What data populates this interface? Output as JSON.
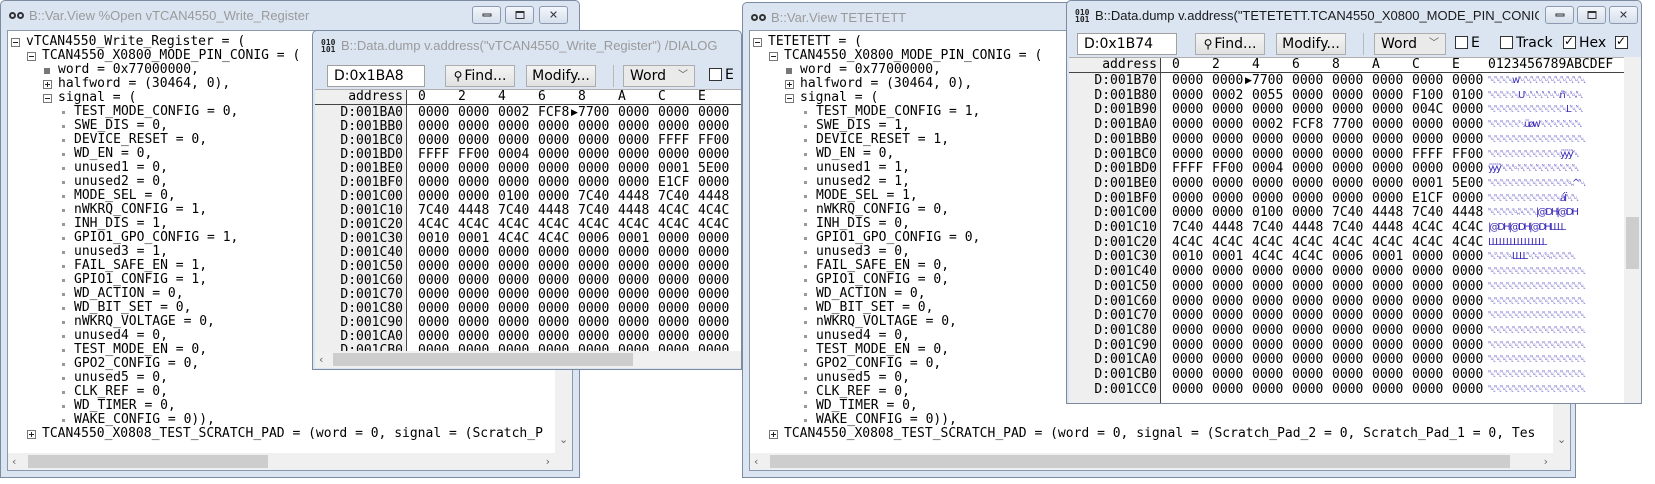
{
  "window_buttons": {
    "minimize_icon": "minimize-icon",
    "maximize_icon": "maximize-icon",
    "close_icon": "close-icon",
    "close_glyph": "✕"
  },
  "var_view_1": {
    "title": "B::Var.View %Open vTCAN4550_Write_Register",
    "lines": [
      {
        "level": 0,
        "marker": "minus",
        "text": "vTCAN4550_Write_Register = ("
      },
      {
        "level": 1,
        "marker": "minus",
        "text": "TCAN4550_X0800_MODE_PIN_CONIG = ("
      },
      {
        "level": 2,
        "marker": "square",
        "text": "word = 0x77000000,"
      },
      {
        "level": 2,
        "marker": "plus",
        "text": "halfword = (30464, 0),"
      },
      {
        "level": 2,
        "marker": "minus",
        "text": "signal = ("
      },
      {
        "level": 3,
        "marker": "dot",
        "text": "TEST_MODE_CONFIG = 0,"
      },
      {
        "level": 3,
        "marker": "dot",
        "text": "SWE_DIS = 0,"
      },
      {
        "level": 3,
        "marker": "dot",
        "text": "DEVICE_RESET = 0,"
      },
      {
        "level": 3,
        "marker": "dot",
        "text": "WD_EN = 0,"
      },
      {
        "level": 3,
        "marker": "dot",
        "text": "unused1 = 0,"
      },
      {
        "level": 3,
        "marker": "dot",
        "text": "unused2 = 0,"
      },
      {
        "level": 3,
        "marker": "dot",
        "text": "MODE_SEL = 0,"
      },
      {
        "level": 3,
        "marker": "dot",
        "text": "nWKRQ_CONFIG = 1,"
      },
      {
        "level": 3,
        "marker": "dot",
        "text": "INH_DIS = 1,"
      },
      {
        "level": 3,
        "marker": "dot",
        "text": "GPIO1_GPO_CONFIG = 1,"
      },
      {
        "level": 3,
        "marker": "dot",
        "text": "unused3 = 1,"
      },
      {
        "level": 3,
        "marker": "dot",
        "text": "FAIL_SAFE_EN = 1,"
      },
      {
        "level": 3,
        "marker": "dot",
        "text": "GPIO1_CONFIG = 1,"
      },
      {
        "level": 3,
        "marker": "dot",
        "text": "WD_ACTION = 0,"
      },
      {
        "level": 3,
        "marker": "dot",
        "text": "WD_BIT_SET = 0,"
      },
      {
        "level": 3,
        "marker": "dot",
        "text": "nWKRQ_VOLTAGE = 0,"
      },
      {
        "level": 3,
        "marker": "dot",
        "text": "unused4 = 0,"
      },
      {
        "level": 3,
        "marker": "dot",
        "text": "TEST_MODE_EN = 0,"
      },
      {
        "level": 3,
        "marker": "dot",
        "text": "GPO2_CONFIG = 0,"
      },
      {
        "level": 3,
        "marker": "dot",
        "text": "unused5 = 0,"
      },
      {
        "level": 3,
        "marker": "dot",
        "text": "CLK_REF = 0,"
      },
      {
        "level": 3,
        "marker": "dot",
        "text": "WD_TIMER = 0,"
      },
      {
        "level": 3,
        "marker": "dot",
        "text": "WAKE_CONFIG = 0)),"
      },
      {
        "level": 1,
        "marker": "plus",
        "text": "TCAN4550_X0808_TEST_SCRATCH_PAD = (word = 0, signal = (Scratch_P"
      }
    ]
  },
  "var_view_2": {
    "title": "B::Var.View TETETETT",
    "lines": [
      {
        "level": 0,
        "marker": "minus",
        "text": "TETETETT = ("
      },
      {
        "level": 1,
        "marker": "minus",
        "text": "TCAN4550_X0800_MODE_PIN_CONIG = ("
      },
      {
        "level": 2,
        "marker": "square",
        "text": "word = 0x77000000,"
      },
      {
        "level": 2,
        "marker": "plus",
        "text": "halfword = (30464, 0),"
      },
      {
        "level": 2,
        "marker": "minus",
        "text": "signal = ("
      },
      {
        "level": 3,
        "marker": "dot",
        "text": "TEST_MODE_CONFIG = 1,"
      },
      {
        "level": 3,
        "marker": "dot",
        "text": "SWE_DIS = 1,"
      },
      {
        "level": 3,
        "marker": "dot",
        "text": "DEVICE_RESET = 1,"
      },
      {
        "level": 3,
        "marker": "dot",
        "text": "WD_EN = 0,"
      },
      {
        "level": 3,
        "marker": "dot",
        "text": "unused1 = 1,"
      },
      {
        "level": 3,
        "marker": "dot",
        "text": "unused2 = 1,"
      },
      {
        "level": 3,
        "marker": "dot",
        "text": "MODE_SEL = 1,"
      },
      {
        "level": 3,
        "marker": "dot",
        "text": "nWKRQ_CONFIG = 0,"
      },
      {
        "level": 3,
        "marker": "dot",
        "text": "INH_DIS = 0,"
      },
      {
        "level": 3,
        "marker": "dot",
        "text": "GPIO1_GPO_CONFIG = 0,"
      },
      {
        "level": 3,
        "marker": "dot",
        "text": "unused3 = 0,"
      },
      {
        "level": 3,
        "marker": "dot",
        "text": "FAIL_SAFE_EN = 0,"
      },
      {
        "level": 3,
        "marker": "dot",
        "text": "GPIO1_CONFIG = 0,"
      },
      {
        "level": 3,
        "marker": "dot",
        "text": "WD_ACTION = 0,"
      },
      {
        "level": 3,
        "marker": "dot",
        "text": "WD_BIT_SET = 0,"
      },
      {
        "level": 3,
        "marker": "dot",
        "text": "nWKRQ_VOLTAGE = 0,"
      },
      {
        "level": 3,
        "marker": "dot",
        "text": "unused4 = 0,"
      },
      {
        "level": 3,
        "marker": "dot",
        "text": "TEST_MODE_EN = 0,"
      },
      {
        "level": 3,
        "marker": "dot",
        "text": "GPO2_CONFIG = 0,"
      },
      {
        "level": 3,
        "marker": "dot",
        "text": "unused5 = 0,"
      },
      {
        "level": 3,
        "marker": "dot",
        "text": "CLK_REF = 0,"
      },
      {
        "level": 3,
        "marker": "dot",
        "text": "WD_TIMER = 0,"
      },
      {
        "level": 3,
        "marker": "dot",
        "text": "WAKE_CONFIG = 0)),"
      },
      {
        "level": 1,
        "marker": "plus",
        "text": "TCAN4550_X0808_TEST_SCRATCH_PAD = (word = 0, signal = (Scratch_Pad_2 = 0, Scratch_Pad_1 = 0, Tes"
      }
    ]
  },
  "dump_1": {
    "title": "B::Data.dump v.address(\"vTCAN4550_Write_Register\") /DIALOG",
    "icon": "binary-010-101-icon",
    "icon_text": [
      "010",
      "101"
    ],
    "address_input": "D:0x1BA8",
    "find_label": "Find...",
    "modify_label": "Modify...",
    "access_width": "Word",
    "checkboxes": [
      {
        "label": "E",
        "checked": false
      }
    ],
    "columns": [
      "address",
      "0",
      "2",
      "4",
      "6",
      "8",
      "A",
      "C",
      "E"
    ],
    "pointer": {
      "row": 0,
      "word": 4
    },
    "rows": [
      {
        "address": "D:001BA0",
        "words": [
          "0000",
          "0000",
          "0002",
          "FCF8",
          "7700",
          "0000",
          "0000",
          "0000"
        ]
      },
      {
        "address": "D:001BB0",
        "words": [
          "0000",
          "0000",
          "0000",
          "0000",
          "0000",
          "0000",
          "0000",
          "0000"
        ]
      },
      {
        "address": "D:001BC0",
        "words": [
          "0000",
          "0000",
          "0000",
          "0000",
          "0000",
          "0000",
          "FFFF",
          "FF00"
        ]
      },
      {
        "address": "D:001BD0",
        "words": [
          "FFFF",
          "FF00",
          "0004",
          "0000",
          "0000",
          "0000",
          "0000",
          "0000"
        ]
      },
      {
        "address": "D:001BE0",
        "words": [
          "0000",
          "0000",
          "0000",
          "0000",
          "0000",
          "0000",
          "0001",
          "5E00"
        ]
      },
      {
        "address": "D:001BF0",
        "words": [
          "0000",
          "0000",
          "0000",
          "0000",
          "0000",
          "0000",
          "E1CF",
          "0000"
        ]
      },
      {
        "address": "D:001C00",
        "words": [
          "0000",
          "0000",
          "0100",
          "0000",
          "7C40",
          "4448",
          "7C40",
          "4448"
        ]
      },
      {
        "address": "D:001C10",
        "words": [
          "7C40",
          "4448",
          "7C40",
          "4448",
          "7C40",
          "4448",
          "4C4C",
          "4C4C"
        ]
      },
      {
        "address": "D:001C20",
        "words": [
          "4C4C",
          "4C4C",
          "4C4C",
          "4C4C",
          "4C4C",
          "4C4C",
          "4C4C",
          "4C4C"
        ]
      },
      {
        "address": "D:001C30",
        "words": [
          "0010",
          "0001",
          "4C4C",
          "4C4C",
          "0006",
          "0001",
          "0000",
          "0000"
        ]
      },
      {
        "address": "D:001C40",
        "words": [
          "0000",
          "0000",
          "0000",
          "0000",
          "0000",
          "0000",
          "0000",
          "0000"
        ]
      },
      {
        "address": "D:001C50",
        "words": [
          "0000",
          "0000",
          "0000",
          "0000",
          "0000",
          "0000",
          "0000",
          "0000"
        ]
      },
      {
        "address": "D:001C60",
        "words": [
          "0000",
          "0000",
          "0000",
          "0000",
          "0000",
          "0000",
          "0000",
          "0000"
        ]
      },
      {
        "address": "D:001C70",
        "words": [
          "0000",
          "0000",
          "0000",
          "0000",
          "0000",
          "0000",
          "0000",
          "0000"
        ]
      },
      {
        "address": "D:001C80",
        "words": [
          "0000",
          "0000",
          "0000",
          "0000",
          "0000",
          "0000",
          "0000",
          "0000"
        ]
      },
      {
        "address": "D:001C90",
        "words": [
          "0000",
          "0000",
          "0000",
          "0000",
          "0000",
          "0000",
          "0000",
          "0000"
        ]
      },
      {
        "address": "D:001CA0",
        "words": [
          "0000",
          "0000",
          "0000",
          "0000",
          "0000",
          "0000",
          "0000",
          "0000"
        ]
      },
      {
        "address": "D:001CB0",
        "words": [
          "0000",
          "0000",
          "0000",
          "0000",
          "0000",
          "0000",
          "0000",
          "0000"
        ]
      }
    ]
  },
  "dump_2": {
    "title": "B::Data.dump v.address(\"TETETETT.TCAN4550_X0800_MODE_PIN_CONIG\") /DIAL...",
    "icon": "binary-010-101-icon",
    "icon_text": [
      "010",
      "101"
    ],
    "address_input": "D:0x1B74",
    "find_label": "Find...",
    "modify_label": "Modify...",
    "access_width": "Word",
    "checkboxes": [
      {
        "label": "E",
        "checked": false
      },
      {
        "label": "Track",
        "checked": false
      },
      {
        "label": "Hex",
        "checked": true
      },
      {
        "label": "",
        "checked": true
      }
    ],
    "columns": [
      "address",
      "0",
      "2",
      "4",
      "6",
      "8",
      "A",
      "C",
      "E"
    ],
    "ascii_header": "0123456789ABCDEF",
    "pointer": {
      "row": 0,
      "word": 2
    },
    "rows": [
      {
        "address": "D:001B70",
        "words": [
          "0000",
          "0000",
          "7700",
          "0000",
          "0000",
          "0000",
          "0000",
          "0000"
        ],
        "ascii": "␀␀␀␀w␀␀␀␀␀␀␀␀␀␀␀"
      },
      {
        "address": "D:001B80",
        "words": [
          "0000",
          "0002",
          "0055",
          "0000",
          "0000",
          "0000",
          "F100",
          "0100"
        ],
        "ascii": "␀␀␀␂␀U␀␀␀␀␀␀ñ␀␁␀"
      },
      {
        "address": "D:001B90",
        "words": [
          "0000",
          "0000",
          "0000",
          "0000",
          "0000",
          "0000",
          "004C",
          "0000"
        ],
        "ascii": "␀␀␀␀␀␀␀␀␀␀␀␀␀L␀␀"
      },
      {
        "address": "D:001BA0",
        "words": [
          "0000",
          "0000",
          "0002",
          "FCF8",
          "7700",
          "0000",
          "0000",
          "0000"
        ],
        "ascii": "␀␀␀␀␀␂üøw␀␀␀␀␀␀␀"
      },
      {
        "address": "D:001BB0",
        "words": [
          "0000",
          "0000",
          "0000",
          "0000",
          "0000",
          "0000",
          "0000",
          "0000"
        ],
        "ascii": "␀␀␀␀␀␀␀␀␀␀␀␀␀␀␀␀"
      },
      {
        "address": "D:001BC0",
        "words": [
          "0000",
          "0000",
          "0000",
          "0000",
          "0000",
          "0000",
          "FFFF",
          "FF00"
        ],
        "ascii": "␀␀␀␀␀␀␀␀␀␀␀␀ÿÿÿ␀"
      },
      {
        "address": "D:001BD0",
        "words": [
          "FFFF",
          "FF00",
          "0004",
          "0000",
          "0000",
          "0000",
          "0000",
          "0000"
        ],
        "ascii": "ÿÿÿ␀␀␄␀␀␀␀␀␀␀␀␀␀"
      },
      {
        "address": "D:001BE0",
        "words": [
          "0000",
          "0000",
          "0000",
          "0000",
          "0000",
          "0000",
          "0001",
          "5E00"
        ],
        "ascii": "␀␀␀␀␀␀␀␀␀␀␀␀␀␁^␀"
      },
      {
        "address": "D:001BF0",
        "words": [
          "0000",
          "0000",
          "0000",
          "0000",
          "0000",
          "0000",
          "E1CF",
          "0000"
        ],
        "ascii": "␀␀␀␀␀␀␀␀␀␀␀␀áÏ␀␀"
      },
      {
        "address": "D:001C00",
        "words": [
          "0000",
          "0000",
          "0100",
          "0000",
          "7C40",
          "4448",
          "7C40",
          "4448"
        ],
        "ascii": "␀␀␀␀␁␀␀␀|@DH|@DH"
      },
      {
        "address": "D:001C10",
        "words": [
          "7C40",
          "4448",
          "7C40",
          "4448",
          "7C40",
          "4448",
          "4C4C",
          "4C4C"
        ],
        "ascii": "|@DH|@DH|@DHLLLL"
      },
      {
        "address": "D:001C20",
        "words": [
          "4C4C",
          "4C4C",
          "4C4C",
          "4C4C",
          "4C4C",
          "4C4C",
          "4C4C",
          "4C4C"
        ],
        "ascii": "LLLLLLLLLLLLLLLL"
      },
      {
        "address": "D:001C30",
        "words": [
          "0010",
          "0001",
          "4C4C",
          "4C4C",
          "0006",
          "0001",
          "0000",
          "0000"
        ],
        "ascii": "␀␐␀␁LLLL␀␆␀␁␀␀␀␀"
      },
      {
        "address": "D:001C40",
        "words": [
          "0000",
          "0000",
          "0000",
          "0000",
          "0000",
          "0000",
          "0000",
          "0000"
        ],
        "ascii": "␀␀␀␀␀␀␀␀␀␀␀␀␀␀␀␀"
      },
      {
        "address": "D:001C50",
        "words": [
          "0000",
          "0000",
          "0000",
          "0000",
          "0000",
          "0000",
          "0000",
          "0000"
        ],
        "ascii": "␀␀␀␀␀␀␀␀␀␀␀␀␀␀␀␀"
      },
      {
        "address": "D:001C60",
        "words": [
          "0000",
          "0000",
          "0000",
          "0000",
          "0000",
          "0000",
          "0000",
          "0000"
        ],
        "ascii": "␀␀␀␀␀␀␀␀␀␀␀␀␀␀␀␀"
      },
      {
        "address": "D:001C70",
        "words": [
          "0000",
          "0000",
          "0000",
          "0000",
          "0000",
          "0000",
          "0000",
          "0000"
        ],
        "ascii": "␀␀␀␀␀␀␀␀␀␀␀␀␀␀␀␀"
      },
      {
        "address": "D:001C80",
        "words": [
          "0000",
          "0000",
          "0000",
          "0000",
          "0000",
          "0000",
          "0000",
          "0000"
        ],
        "ascii": "␀␀␀␀␀␀␀␀␀␀␀␀␀␀␀␀"
      },
      {
        "address": "D:001C90",
        "words": [
          "0000",
          "0000",
          "0000",
          "0000",
          "0000",
          "0000",
          "0000",
          "0000"
        ],
        "ascii": "␀␀␀␀␀␀␀␀␀␀␀␀␀␀␀␀"
      },
      {
        "address": "D:001CA0",
        "words": [
          "0000",
          "0000",
          "0000",
          "0000",
          "0000",
          "0000",
          "0000",
          "0000"
        ],
        "ascii": "␀␀␀␀␀␀␀␀␀␀␀␀␀␀␀␀"
      },
      {
        "address": "D:001CB0",
        "words": [
          "0000",
          "0000",
          "0000",
          "0000",
          "0000",
          "0000",
          "0000",
          "0000"
        ],
        "ascii": "␀␀␀␀␀␀␀␀␀␀␀␀␀␀␀␀"
      },
      {
        "address": "D:001CC0",
        "words": [
          "0000",
          "0000",
          "0000",
          "0000",
          "0000",
          "0000",
          "0000",
          "0000"
        ],
        "ascii": "␀␀␀␀␀␀␀␀␀␀␀␀␀␀␀␀"
      }
    ]
  }
}
